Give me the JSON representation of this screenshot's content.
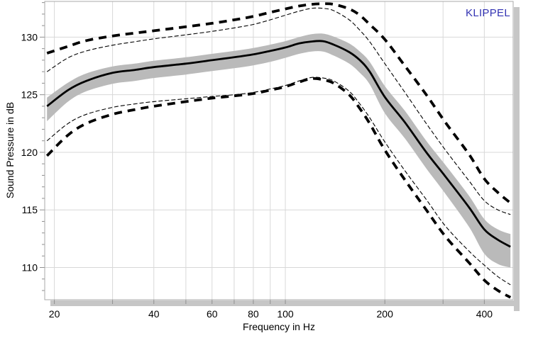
{
  "watermark": {
    "text": "KLIPPEL",
    "color": "#3333b3"
  },
  "chart_data": {
    "type": "line",
    "title": "",
    "xlabel": "Frequency in Hz",
    "ylabel": "Sound Pressure in dB",
    "x_scale": "log",
    "xlim": [
      18.7,
      489
    ],
    "ylim": [
      107.2,
      133.1
    ],
    "x_gridlines": [
      20,
      30,
      40,
      50,
      60,
      70,
      80,
      90,
      100,
      200,
      300,
      400
    ],
    "x_tick_labels": [
      "20",
      "40",
      "60",
      "80",
      "100",
      "200",
      "400"
    ],
    "x_tick_label_values": [
      20,
      40,
      60,
      80,
      100,
      200,
      400
    ],
    "y_gridlines": [
      110,
      115,
      120,
      125,
      130
    ],
    "y_tick_labels": [
      "110",
      "115",
      "120",
      "125",
      "130"
    ],
    "y_minor_tick_step": 1,
    "grid": true,
    "legend_position": "none",
    "colors": {
      "grid": "#d8d8d8",
      "frame": "#a9a9a9",
      "shadow": "#c6c6c6",
      "tick": "#8f8f8f",
      "text": "#000000",
      "band": "#bababa",
      "line": "#000000"
    },
    "frequencies": [
      19,
      22,
      25,
      30,
      35,
      40,
      50,
      60,
      70,
      80,
      90,
      100,
      110,
      120,
      130,
      140,
      156,
      168,
      180,
      200,
      230,
      267,
      305,
      360,
      400,
      440,
      480
    ],
    "band": {
      "name": "std-deviation-band",
      "hi": [
        124.75,
        126.05,
        126.85,
        127.45,
        127.7,
        127.95,
        128.25,
        128.55,
        128.8,
        129.05,
        129.35,
        129.65,
        130.0,
        130.25,
        130.3,
        130.05,
        129.45,
        128.75,
        127.85,
        125.75,
        123.6,
        121.0,
        118.9,
        116.2,
        114.2,
        113.3,
        112.9
      ],
      "lo": [
        122.7,
        124.4,
        125.3,
        125.95,
        126.2,
        126.45,
        126.75,
        127.05,
        127.3,
        127.55,
        127.85,
        128.2,
        128.55,
        128.75,
        128.75,
        128.4,
        127.7,
        126.9,
        125.9,
        123.4,
        121.2,
        118.6,
        116.4,
        113.5,
        111.2,
        110.3,
        110.0
      ]
    },
    "series": [
      {
        "name": "upper-limit",
        "style": "thick-dashed",
        "values": [
          128.6,
          129.2,
          129.7,
          130.1,
          130.35,
          130.55,
          130.9,
          131.2,
          131.5,
          131.8,
          132.15,
          132.45,
          132.7,
          132.85,
          132.9,
          132.85,
          132.45,
          131.9,
          131.1,
          129.8,
          127.5,
          125.0,
          122.6,
          119.8,
          117.7,
          116.5,
          115.6
        ]
      },
      {
        "name": "upper-bound-thin",
        "style": "thin-dashed",
        "values": [
          127.0,
          128.2,
          128.8,
          129.3,
          129.6,
          129.85,
          130.2,
          130.5,
          130.8,
          131.1,
          131.5,
          131.9,
          132.25,
          132.5,
          132.5,
          132.3,
          131.5,
          130.6,
          129.6,
          127.7,
          125.2,
          122.5,
          120.2,
          117.5,
          115.8,
          115.0,
          114.6
        ]
      },
      {
        "name": "lower-bound-thin",
        "style": "thin-dashed",
        "values": [
          121.0,
          122.5,
          123.3,
          123.9,
          124.2,
          124.4,
          124.65,
          124.85,
          125.0,
          125.2,
          125.5,
          125.8,
          126.2,
          126.5,
          126.45,
          126.2,
          125.3,
          124.2,
          123.0,
          120.9,
          118.4,
          115.9,
          113.6,
          111.4,
          110.2,
          109.2,
          108.5
        ]
      },
      {
        "name": "lower-limit",
        "style": "thick-dashed",
        "values": [
          119.7,
          121.5,
          122.5,
          123.3,
          123.7,
          124.0,
          124.4,
          124.7,
          124.9,
          125.1,
          125.4,
          125.7,
          126.1,
          126.4,
          126.3,
          126.0,
          125.0,
          123.8,
          122.5,
          120.2,
          117.6,
          115.0,
          112.7,
          110.4,
          108.9,
          108.0,
          107.4
        ]
      },
      {
        "name": "mean-spl",
        "style": "solid-thick",
        "values": [
          124.0,
          125.4,
          126.2,
          126.9,
          127.15,
          127.4,
          127.7,
          128.0,
          128.25,
          128.5,
          128.8,
          129.1,
          129.45,
          129.62,
          129.65,
          129.35,
          128.7,
          128.0,
          127.0,
          124.8,
          122.6,
          120.0,
          117.9,
          115.2,
          113.3,
          112.4,
          111.8
        ]
      }
    ]
  }
}
